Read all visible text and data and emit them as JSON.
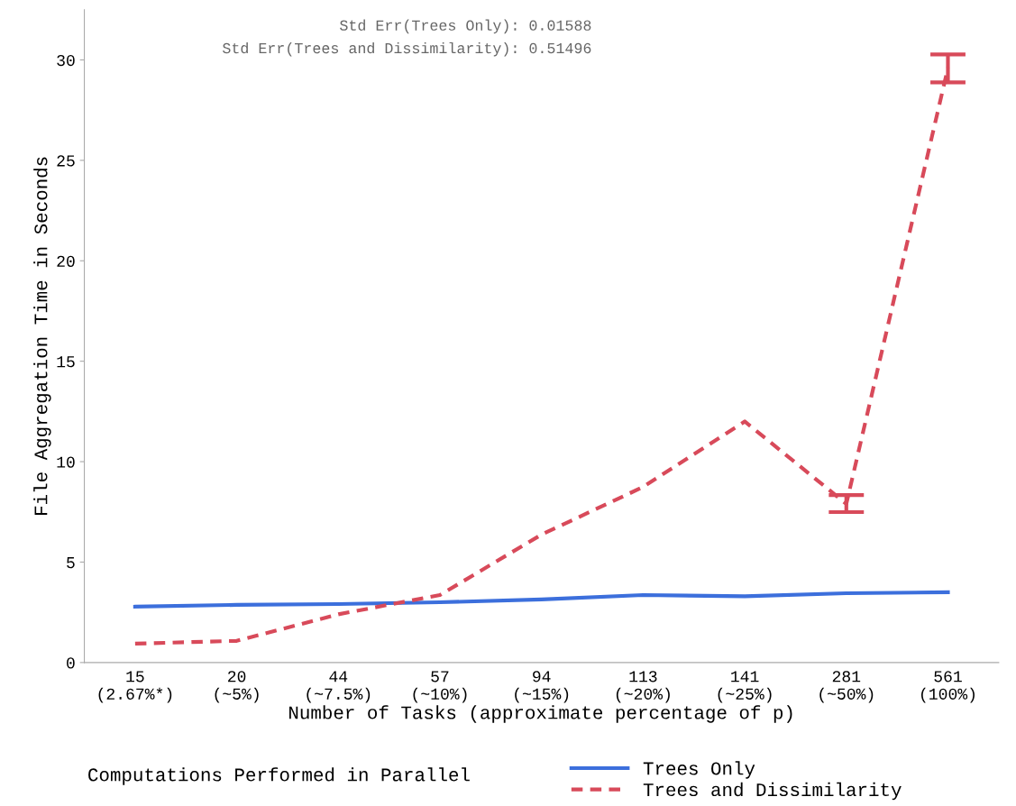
{
  "chart_data": {
    "type": "line",
    "xlabel": "Number of Tasks (approximate percentage of p)",
    "ylabel": "File Aggregation Time in Seconds",
    "legend_title": "Computations Performed in Parallel",
    "categories": [
      "15\n(2.67%*)",
      "20\n(~5%)",
      "44\n(~7.5%)",
      "57\n(~10%)",
      "94\n(~15%)",
      "113\n(~20%)",
      "141\n(~25%)",
      "281\n(~50%)",
      "561\n(100%)"
    ],
    "series": [
      {
        "name": "Trees Only",
        "color": "#3c6fdc",
        "line_style": "solid",
        "values": [
          2.78,
          2.87,
          2.91,
          3.0,
          3.14,
          3.36,
          3.3,
          3.45,
          3.5
        ]
      },
      {
        "name": "Trees and Dissimilarity",
        "color": "#d84a5a",
        "line_style": "dashed",
        "values": [
          0.94,
          1.08,
          2.4,
          3.36,
          6.37,
          8.74,
          12.0,
          7.9,
          29.6
        ],
        "errors": [
          null,
          null,
          null,
          null,
          null,
          null,
          null,
          [
            7.49,
            8.34
          ],
          [
            28.88,
            30.27
          ]
        ]
      }
    ],
    "annotations": [
      "Std Err(Trees Only): 0.01588",
      "Std Err(Trees and Dissimilarity): 0.51496"
    ],
    "ylim": [
      0,
      32.5
    ],
    "yticks": [
      0,
      5,
      10,
      15,
      20,
      25,
      30
    ],
    "grid": false,
    "legend": "bottom",
    "marker": "none"
  }
}
